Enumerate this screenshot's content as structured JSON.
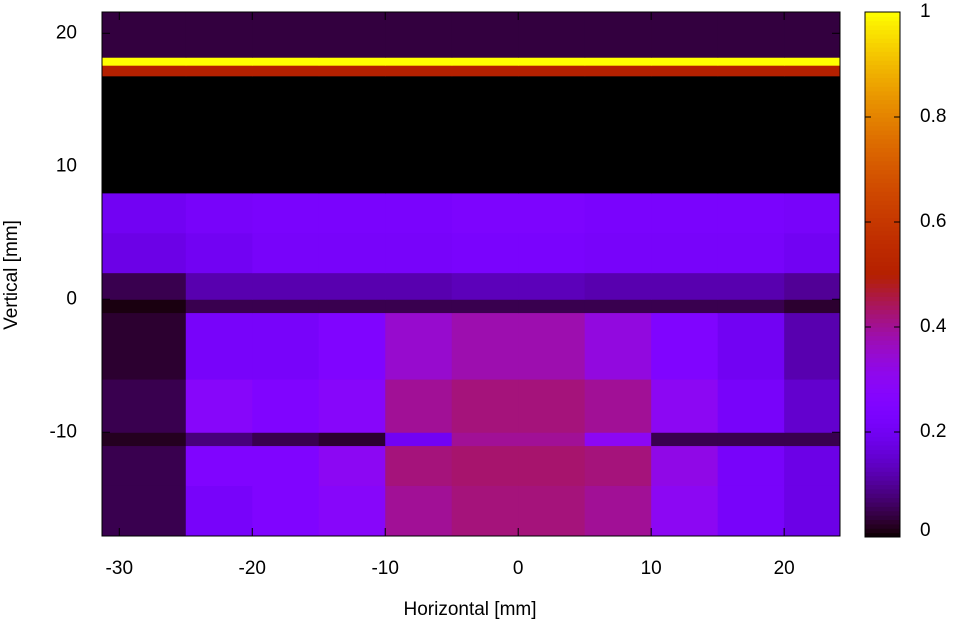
{
  "chart_data": {
    "type": "heatmap",
    "xlabel": "Horizontal [mm]",
    "ylabel": "Vertical [mm]",
    "xlim": [
      -31.3,
      24.2
    ],
    "ylim": [
      -17.8,
      21.6
    ],
    "xticks": [
      -30,
      -20,
      -10,
      0,
      10,
      20
    ],
    "yticks": [
      -10,
      0,
      10,
      20
    ],
    "colormap": "gnuplot",
    "zlim": [
      0,
      1
    ],
    "zticks": [
      0,
      0.2,
      0.4,
      0.6,
      0.8,
      1
    ],
    "xbins": [
      -31.3,
      -25,
      -20,
      -15,
      -10,
      -5,
      0,
      5,
      10,
      15,
      20,
      24.2
    ],
    "ybins": [
      -17.8,
      -14,
      -11,
      -10,
      -6,
      -1,
      0,
      2,
      5,
      8,
      16.8,
      17.6,
      18.2,
      21.6
    ],
    "z": [
      [
        0.05,
        0.22,
        0.25,
        0.28,
        0.4,
        0.42,
        0.42,
        0.4,
        0.3,
        0.22,
        0.18
      ],
      [
        0.05,
        0.25,
        0.25,
        0.3,
        0.42,
        0.43,
        0.43,
        0.42,
        0.32,
        0.22,
        0.18
      ],
      [
        0.02,
        0.08,
        0.05,
        0.03,
        0.2,
        0.4,
        0.4,
        0.3,
        0.05,
        0.05,
        0.05
      ],
      [
        0.05,
        0.28,
        0.25,
        0.28,
        0.4,
        0.42,
        0.42,
        0.4,
        0.3,
        0.22,
        0.15
      ],
      [
        0.03,
        0.22,
        0.22,
        0.25,
        0.35,
        0.38,
        0.38,
        0.33,
        0.25,
        0.2,
        0.12
      ],
      [
        0.01,
        0.05,
        0.05,
        0.05,
        0.05,
        0.05,
        0.05,
        0.05,
        0.05,
        0.05,
        0.03
      ],
      [
        0.05,
        0.12,
        0.12,
        0.12,
        0.12,
        0.13,
        0.13,
        0.12,
        0.12,
        0.12,
        0.1
      ],
      [
        0.18,
        0.2,
        0.22,
        0.22,
        0.22,
        0.23,
        0.23,
        0.22,
        0.22,
        0.22,
        0.2
      ],
      [
        0.2,
        0.22,
        0.23,
        0.23,
        0.23,
        0.24,
        0.24,
        0.23,
        0.23,
        0.23,
        0.22
      ],
      [
        0,
        0,
        0,
        0,
        0,
        0,
        0,
        0,
        0,
        0,
        0
      ],
      [
        0.5,
        0.5,
        0.5,
        0.5,
        0.5,
        0.5,
        0.5,
        0.5,
        0.5,
        0.5,
        0.5
      ],
      [
        1,
        1,
        1,
        1,
        1,
        1,
        1,
        1,
        1,
        1,
        1
      ],
      [
        0.04,
        0.04,
        0.04,
        0.04,
        0.04,
        0.04,
        0.04,
        0.04,
        0.04,
        0.04,
        0.04
      ]
    ]
  }
}
